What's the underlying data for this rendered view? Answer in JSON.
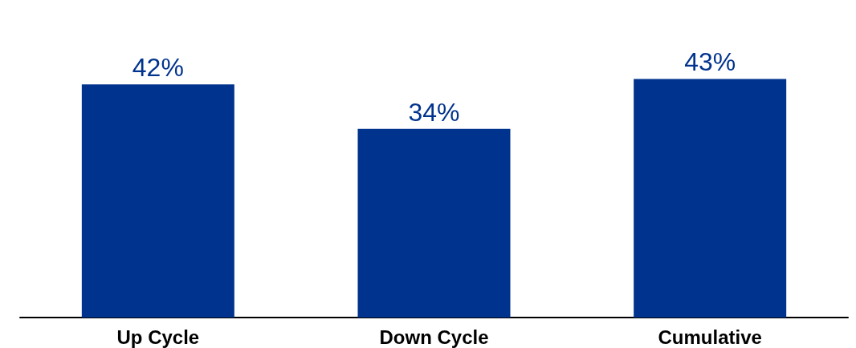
{
  "chart_data": {
    "type": "bar",
    "categories": [
      "Up Cycle",
      "Down Cycle",
      "Cumulative"
    ],
    "values": [
      42,
      34,
      43
    ],
    "color": "#00338d",
    "value_labels": [
      "42%",
      "34%",
      "43%"
    ]
  }
}
